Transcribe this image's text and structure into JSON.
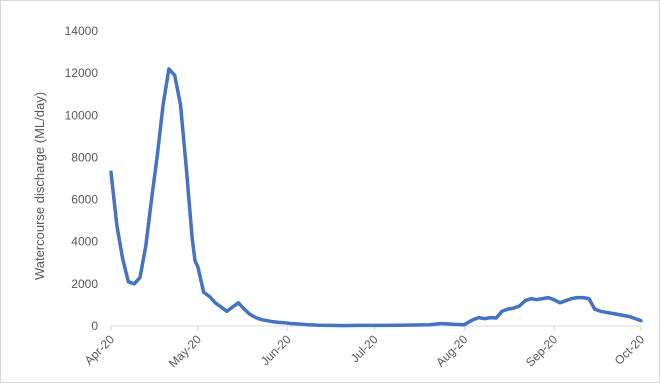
{
  "chart_data": {
    "type": "line",
    "title": "",
    "xlabel": "",
    "ylabel": "Watercourse discharge (ML/day)",
    "ylim": [
      0,
      14000
    ],
    "y_ticks": [
      0,
      2000,
      4000,
      6000,
      8000,
      10000,
      12000,
      14000
    ],
    "x_tick_labels": [
      "Apr-20",
      "May-20",
      "Jun-20",
      "Jul-20",
      "Aug-20",
      "Sep-20",
      "Oct-20"
    ],
    "x_range": [
      "2020-04-01",
      "2020-10-01"
    ],
    "grid": false,
    "legend": "none",
    "series_color": "#4472c4",
    "series": [
      {
        "x": [
          "2020-04-01",
          "2020-04-03",
          "2020-04-05",
          "2020-04-07",
          "2020-04-09",
          "2020-04-11",
          "2020-04-13",
          "2020-04-15",
          "2020-04-17",
          "2020-04-19",
          "2020-04-21",
          "2020-04-23",
          "2020-04-25",
          "2020-04-27",
          "2020-04-29",
          "2020-04-30",
          "2020-05-01",
          "2020-05-03",
          "2020-05-05",
          "2020-05-07",
          "2020-05-09",
          "2020-05-11",
          "2020-05-13",
          "2020-05-15",
          "2020-05-17",
          "2020-05-19",
          "2020-05-21",
          "2020-05-23",
          "2020-05-25",
          "2020-05-27",
          "2020-05-29",
          "2020-05-31",
          "2020-06-02",
          "2020-06-04",
          "2020-06-06",
          "2020-06-08",
          "2020-06-12",
          "2020-06-16",
          "2020-06-20",
          "2020-06-25",
          "2020-07-01",
          "2020-07-10",
          "2020-07-20",
          "2020-07-24",
          "2020-07-26",
          "2020-07-28",
          "2020-08-01",
          "2020-08-04",
          "2020-08-06",
          "2020-08-08",
          "2020-08-10",
          "2020-08-12",
          "2020-08-14",
          "2020-08-16",
          "2020-08-18",
          "2020-08-20",
          "2020-08-22",
          "2020-08-24",
          "2020-08-26",
          "2020-08-28",
          "2020-08-30",
          "2020-09-01",
          "2020-09-03",
          "2020-09-05",
          "2020-09-07",
          "2020-09-09",
          "2020-09-11",
          "2020-09-13",
          "2020-09-15",
          "2020-09-17",
          "2020-09-19",
          "2020-09-21",
          "2020-09-23",
          "2020-09-25",
          "2020-09-27",
          "2020-09-29",
          "2020-10-01"
        ],
        "y": [
          7300,
          4800,
          3200,
          2100,
          2000,
          2300,
          3800,
          6000,
          8100,
          10500,
          12200,
          11900,
          10500,
          7500,
          4200,
          3100,
          2800,
          1600,
          1400,
          1100,
          900,
          700,
          900,
          1100,
          800,
          550,
          400,
          300,
          250,
          200,
          170,
          150,
          120,
          100,
          80,
          60,
          40,
          30,
          20,
          30,
          30,
          40,
          60,
          120,
          100,
          80,
          60,
          300,
          400,
          350,
          400,
          380,
          700,
          800,
          850,
          950,
          1200,
          1300,
          1250,
          1300,
          1350,
          1250,
          1100,
          1200,
          1300,
          1350,
          1350,
          1300,
          800,
          700,
          650,
          600,
          550,
          500,
          450,
          350,
          250
        ]
      }
    ]
  }
}
